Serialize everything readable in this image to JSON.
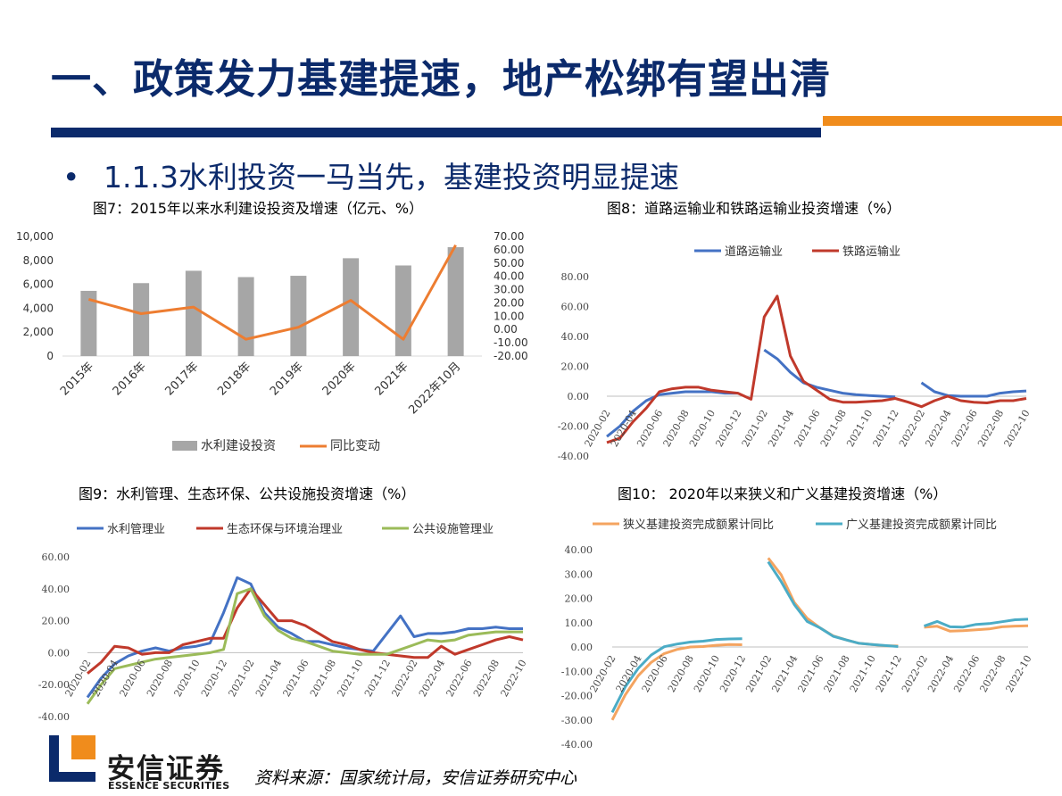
{
  "slide": {
    "title": "一、政策发力基建提速，地产松绑有望出清",
    "bullet_marker": "•",
    "bullet": "1.1.3水利投资一马当先，基建投资明显提速",
    "source": "资料来源：国家统计局，安信证券研究中心",
    "logo_name": "安信证券",
    "logo_sub": "ESSENCE SECURITIES"
  },
  "colors": {
    "title_blue": "#0b2a6b",
    "accent_orange": "#f08c1c",
    "bar_gray": "#a6a6a6",
    "line_orange": "#ed7d31",
    "line_blue": "#4472c4",
    "line_red": "#c0392b",
    "line_green": "#9bbb59",
    "line_light_orange": "#f4a460",
    "line_teal": "#4bacc6"
  },
  "chart_data": [
    {
      "title": "图7：2015年以来水利建设投资及增速（亿元、%）",
      "type": "bar+line",
      "categories": [
        "2015年",
        "2016年",
        "2017年",
        "2018年",
        "2019年",
        "2020年",
        "2021年",
        "2022年10月"
      ],
      "series": [
        {
          "name": "水利建设投资",
          "type": "bar",
          "axis": "left",
          "values": [
            5452,
            6100,
            7132,
            6603,
            6712,
            8181,
            7576,
            9102
          ]
        },
        {
          "name": "同比变动",
          "type": "line",
          "axis": "right",
          "values": [
            22.7,
            11.9,
            16.9,
            -7.4,
            1.7,
            21.9,
            -7.4,
            63.5
          ]
        }
      ],
      "y_left_ticks": [
        "10,000",
        "8,000",
        "6,000",
        "4,000",
        "2,000",
        "0"
      ],
      "y_left_lim": [
        0,
        10000
      ],
      "y_right_ticks": [
        "70.00",
        "60.00",
        "50.00",
        "40.00",
        "30.00",
        "20.00",
        "10.00",
        "0.00",
        "-10.00",
        "-20.00"
      ],
      "y_right_lim": [
        -20,
        70
      ],
      "legend_position": "bottom"
    },
    {
      "title": "图8：道路运输业和铁路运输业投资增速（%）",
      "type": "line",
      "x": [
        "2020-02",
        "2020-03",
        "2020-04",
        "2020-05",
        "2020-06",
        "2020-07",
        "2020-08",
        "2020-09",
        "2020-10",
        "2020-11",
        "2020-12",
        "2021-01",
        "2021-02",
        "2021-03",
        "2021-04",
        "2021-05",
        "2021-06",
        "2021-07",
        "2021-08",
        "2021-09",
        "2021-10",
        "2021-11",
        "2021-12",
        "2022-01",
        "2022-02",
        "2022-03",
        "2022-04",
        "2022-05",
        "2022-06",
        "2022-07",
        "2022-08",
        "2022-09",
        "2022-10"
      ],
      "x_tick_labels": [
        "2020-02",
        "2020-04",
        "2020-06",
        "2020-08",
        "2020-10",
        "2020-12",
        "2021-02",
        "2021-04",
        "2021-06",
        "2021-08",
        "2021-10",
        "2021-12",
        "2022-02",
        "2022-04",
        "2022-06",
        "2022-08",
        "2022-10"
      ],
      "series": [
        {
          "name": "道路运输业",
          "values": [
            -27,
            -20,
            -10,
            -3,
            1,
            2,
            3,
            3,
            3,
            2,
            2,
            null,
            31,
            25,
            16,
            9,
            6,
            4,
            2,
            1,
            0.5,
            0,
            -0.5,
            null,
            9,
            3,
            0.5,
            0,
            0,
            0,
            2,
            3,
            3.5
          ]
        },
        {
          "name": "铁路运输业",
          "values": [
            -31,
            -28,
            -17,
            -8,
            3,
            5,
            6,
            6,
            4,
            3,
            2,
            -2,
            53,
            67,
            27,
            10,
            4,
            -2,
            -4,
            -4,
            -3.5,
            -3,
            -1.5,
            -4,
            -7,
            -3,
            0,
            -3,
            -4,
            -4.5,
            -3,
            -3,
            -1.5
          ]
        }
      ],
      "y_ticks": [
        "80.00",
        "60.00",
        "40.00",
        "20.00",
        "0.00",
        "-20.00",
        "-40.00"
      ],
      "ylim": [
        -40,
        80
      ],
      "legend_position": "top"
    },
    {
      "title": "图9：水利管理、生态环保、公共设施投资增速（%）",
      "type": "line",
      "x": [
        "2020-02",
        "2020-03",
        "2020-04",
        "2020-05",
        "2020-06",
        "2020-07",
        "2020-08",
        "2020-09",
        "2020-10",
        "2020-11",
        "2020-12",
        "2021-01",
        "2021-02",
        "2021-03",
        "2021-04",
        "2021-05",
        "2021-06",
        "2021-07",
        "2021-08",
        "2021-09",
        "2021-10",
        "2021-11",
        "2021-12",
        "2022-01",
        "2022-02",
        "2022-03",
        "2022-04",
        "2022-05",
        "2022-06",
        "2022-07",
        "2022-08",
        "2022-09",
        "2022-10"
      ],
      "x_tick_labels": [
        "2020-02",
        "2020-04",
        "2020-06",
        "2020-08",
        "2020-10",
        "2020-12",
        "2021-02",
        "2021-04",
        "2021-06",
        "2021-08",
        "2021-10",
        "2021-12",
        "2022-02",
        "2022-04",
        "2022-06",
        "2022-08",
        "2022-10"
      ],
      "series": [
        {
          "name": "水利管理业",
          "values": [
            -28,
            -16,
            -7,
            -2,
            1,
            3,
            1,
            3,
            4,
            6,
            25,
            47,
            43,
            25,
            16,
            12,
            7,
            7,
            5,
            3,
            2,
            1,
            12,
            23,
            10,
            12,
            12,
            13,
            15,
            15,
            16,
            15,
            15
          ]
        },
        {
          "name": "生态环保与环境治理业",
          "values": [
            -13,
            -6,
            4,
            3,
            -1,
            0,
            0,
            5,
            7,
            9,
            9,
            28,
            40,
            30,
            20,
            20,
            17,
            12,
            7,
            5,
            2,
            0,
            -1,
            -2,
            -3,
            -3,
            4,
            -1,
            2,
            5,
            8,
            10,
            8
          ]
        },
        {
          "name": "公共设施管理业",
          "values": [
            -32,
            -20,
            -10,
            -8,
            -6,
            -4,
            -3,
            -2,
            -1,
            0,
            2,
            37,
            40,
            23,
            14,
            9,
            7,
            4,
            1,
            0,
            -1,
            -1,
            -1,
            2,
            5,
            8,
            7,
            8,
            11,
            12,
            13,
            13,
            13
          ]
        }
      ],
      "y_ticks": [
        "60.00",
        "40.00",
        "20.00",
        "0.00",
        "-20.00",
        "-40.00"
      ],
      "ylim": [
        -40,
        60
      ],
      "legend_position": "top"
    },
    {
      "title": "图10： 2020年以来狭义和广义基建投资增速（%）",
      "type": "line",
      "x": [
        "2020-02",
        "2020-03",
        "2020-04",
        "2020-05",
        "2020-06",
        "2020-07",
        "2020-08",
        "2020-09",
        "2020-10",
        "2020-11",
        "2020-12",
        "2021-01",
        "2021-02",
        "2021-03",
        "2021-04",
        "2021-05",
        "2021-06",
        "2021-07",
        "2021-08",
        "2021-09",
        "2021-10",
        "2021-11",
        "2021-12",
        "2022-01",
        "2022-02",
        "2022-03",
        "2022-04",
        "2022-05",
        "2022-06",
        "2022-07",
        "2022-08",
        "2022-09",
        "2022-10"
      ],
      "x_tick_labels": [
        "2020-02",
        "2020-04",
        "2020-06",
        "2020-08",
        "2020-10",
        "2020-12",
        "2021-02",
        "2021-04",
        "2021-06",
        "2021-08",
        "2021-10",
        "2021-12",
        "2022-02",
        "2022-04",
        "2022-06",
        "2022-08",
        "2022-10"
      ],
      "series": [
        {
          "name": "狭义基建投资完成额累计同比",
          "values": [
            -30,
            -19.7,
            -11.8,
            -6.3,
            -2.7,
            -1,
            0,
            0.2,
            0.7,
            1,
            0.9,
            null,
            36.6,
            29.7,
            18.4,
            11.8,
            7.8,
            4.6,
            2.9,
            1.5,
            1,
            0.5,
            0.4,
            null,
            8.1,
            8.5,
            6.5,
            6.7,
            7.1,
            7.4,
            8.3,
            8.6,
            8.7
          ]
        },
        {
          "name": "广义基建投资完成额累计同比",
          "values": [
            -26.9,
            -16.4,
            -8.8,
            -3.3,
            0.1,
            1.2,
            2,
            2.4,
            3.1,
            3.3,
            3.4,
            null,
            35,
            26.9,
            17.5,
            10.5,
            7.8,
            4.4,
            2.9,
            1.5,
            1,
            0.6,
            0.2,
            null,
            8.6,
            10.5,
            8.3,
            8.2,
            9.3,
            9.6,
            10.4,
            11.2,
            11.4
          ]
        }
      ],
      "y_ticks": [
        "40.00",
        "30.00",
        "20.00",
        "10.00",
        "0.00",
        "-10.00",
        "-20.00",
        "-30.00",
        "-40.00"
      ],
      "ylim": [
        -40,
        40
      ],
      "legend_position": "top"
    }
  ]
}
